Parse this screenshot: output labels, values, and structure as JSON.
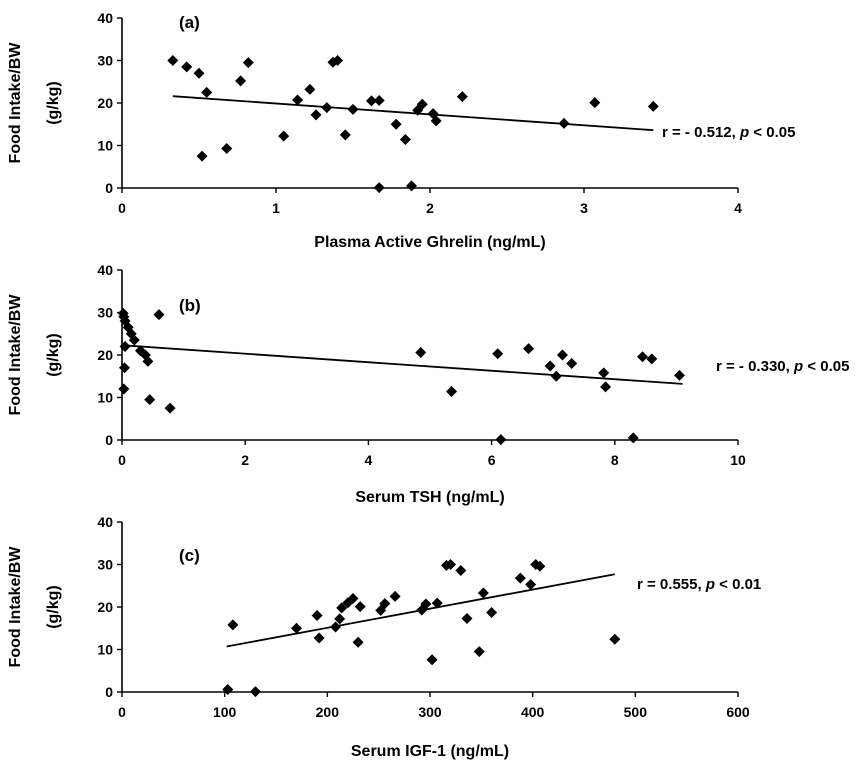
{
  "chart_data": [
    {
      "type": "scatter",
      "panel_label": "(a)",
      "xlabel": "Plasma Active Ghrelin (ng/mL)",
      "ylabel_line1": "Food Intake/BW",
      "ylabel_line2": "(g/kg)",
      "xlim": [
        0,
        4
      ],
      "ylim": [
        0,
        40
      ],
      "xticks": [
        0,
        1,
        2,
        3,
        4
      ],
      "yticks": [
        0,
        10,
        20,
        30,
        40
      ],
      "annotation_prefix": "r = - 0.512, ",
      "annotation_p": "p",
      "annotation_suffix": " < 0.05",
      "trendline": [
        [
          0.33,
          21.6
        ],
        [
          3.45,
          13.6
        ]
      ],
      "points": [
        [
          0.33,
          30.0
        ],
        [
          0.42,
          28.5
        ],
        [
          0.5,
          27.0
        ],
        [
          0.52,
          7.5
        ],
        [
          0.55,
          22.5
        ],
        [
          0.68,
          9.3
        ],
        [
          0.77,
          25.2
        ],
        [
          0.82,
          29.5
        ],
        [
          1.05,
          12.2
        ],
        [
          1.14,
          20.7
        ],
        [
          1.22,
          23.2
        ],
        [
          1.26,
          17.2
        ],
        [
          1.33,
          18.9
        ],
        [
          1.37,
          29.6
        ],
        [
          1.4,
          30.0
        ],
        [
          1.45,
          12.5
        ],
        [
          1.5,
          18.5
        ],
        [
          1.62,
          20.5
        ],
        [
          1.67,
          20.6
        ],
        [
          1.67,
          0.1
        ],
        [
          1.78,
          15.0
        ],
        [
          1.84,
          11.4
        ],
        [
          1.88,
          0.5
        ],
        [
          1.92,
          18.3
        ],
        [
          1.95,
          19.7
        ],
        [
          2.02,
          17.5
        ],
        [
          2.04,
          15.8
        ],
        [
          2.21,
          21.5
        ],
        [
          2.87,
          15.2
        ],
        [
          3.07,
          20.1
        ],
        [
          3.45,
          19.2
        ]
      ]
    },
    {
      "type": "scatter",
      "panel_label": "(b)",
      "xlabel": "Serum TSH (ng/mL)",
      "ylabel_line1": "Food Intake/BW",
      "ylabel_line2": "(g/kg)",
      "xlim": [
        0,
        10
      ],
      "ylim": [
        0,
        40
      ],
      "xticks": [
        0,
        2,
        4,
        6,
        8,
        10
      ],
      "yticks": [
        0,
        10,
        20,
        30,
        40
      ],
      "annotation_prefix": "r =  - 0.330, ",
      "annotation_p": "p",
      "annotation_suffix": " < 0.05",
      "trendline": [
        [
          0.0,
          22.3
        ],
        [
          9.1,
          13.2
        ]
      ],
      "points": [
        [
          0.02,
          29.8
        ],
        [
          0.03,
          29.0
        ],
        [
          0.05,
          28.0
        ],
        [
          0.05,
          22.0
        ],
        [
          0.04,
          17.0
        ],
        [
          0.03,
          12.0
        ],
        [
          0.1,
          26.5
        ],
        [
          0.15,
          25.0
        ],
        [
          0.2,
          23.5
        ],
        [
          0.3,
          21.0
        ],
        [
          0.38,
          20.0
        ],
        [
          0.42,
          18.5
        ],
        [
          0.45,
          9.5
        ],
        [
          0.6,
          29.5
        ],
        [
          0.78,
          7.5
        ],
        [
          4.85,
          20.6
        ],
        [
          5.35,
          11.4
        ],
        [
          6.1,
          20.3
        ],
        [
          6.15,
          0.1
        ],
        [
          6.6,
          21.5
        ],
        [
          6.95,
          17.4
        ],
        [
          7.05,
          15.0
        ],
        [
          7.15,
          20.0
        ],
        [
          7.3,
          18.0
        ],
        [
          7.82,
          15.8
        ],
        [
          7.85,
          12.5
        ],
        [
          8.3,
          0.5
        ],
        [
          8.45,
          19.6
        ],
        [
          8.6,
          19.1
        ],
        [
          9.05,
          15.2
        ]
      ]
    },
    {
      "type": "scatter",
      "panel_label": "(c)",
      "xlabel": "Serum IGF-1 (ng/mL)",
      "ylabel_line1": "Food Intake/BW",
      "ylabel_line2": "(g/kg)",
      "xlim": [
        0,
        600
      ],
      "ylim": [
        0,
        40
      ],
      "xticks": [
        0,
        100,
        200,
        300,
        400,
        500,
        600
      ],
      "yticks": [
        0,
        10,
        20,
        30,
        40
      ],
      "annotation_prefix": "r = 0.555, ",
      "annotation_p": "p",
      "annotation_suffix": " < 0.01",
      "trendline": [
        [
          102,
          10.7
        ],
        [
          480,
          27.7
        ]
      ],
      "points": [
        [
          103,
          0.6
        ],
        [
          108,
          15.8
        ],
        [
          130,
          0.1
        ],
        [
          170,
          15.0
        ],
        [
          190,
          18.0
        ],
        [
          192,
          12.7
        ],
        [
          208,
          15.3
        ],
        [
          212,
          17.2
        ],
        [
          214,
          19.8
        ],
        [
          220,
          21.0
        ],
        [
          225,
          22.0
        ],
        [
          230,
          11.7
        ],
        [
          232,
          20.1
        ],
        [
          252,
          19.2
        ],
        [
          256,
          20.8
        ],
        [
          266,
          22.5
        ],
        [
          292,
          19.3
        ],
        [
          296,
          20.7
        ],
        [
          302,
          7.6
        ],
        [
          307,
          20.9
        ],
        [
          316,
          29.8
        ],
        [
          320,
          30.0
        ],
        [
          330,
          28.6
        ],
        [
          336,
          17.3
        ],
        [
          348,
          9.5
        ],
        [
          352,
          23.3
        ],
        [
          360,
          18.7
        ],
        [
          388,
          26.8
        ],
        [
          398,
          25.3
        ],
        [
          403,
          30.0
        ],
        [
          407,
          29.6
        ],
        [
          480,
          12.4
        ]
      ]
    }
  ]
}
